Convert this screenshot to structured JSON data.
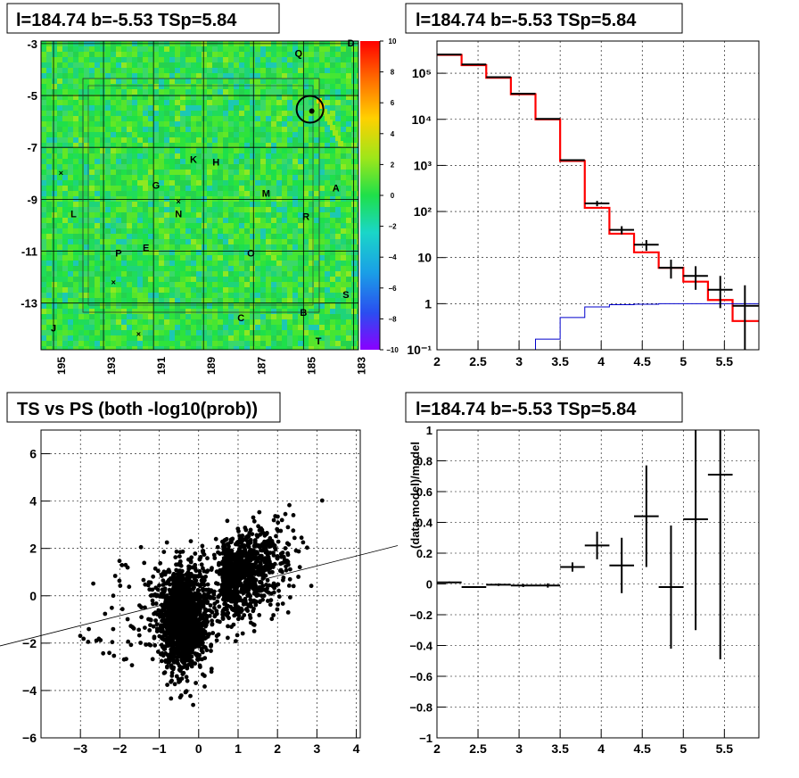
{
  "titles": {
    "p1": "l=184.74 b=-5.53 TSp=5.84",
    "p2": "l=184.74 b=-5.53 TSp=5.84",
    "p3": "TS vs PS (both -log10(prob))",
    "p4": "l=184.74 b=-5.53 TSp=5.84"
  },
  "colors": {
    "hist_red": "#ff0000",
    "model_blue": "#0000cc",
    "points": "#000000",
    "grid": "#000000",
    "map_green": "#33d633"
  },
  "chart_data": [
    {
      "type": "heatmap",
      "panel": "residual map",
      "x_ticks": [
        "195",
        "193",
        "191",
        "189",
        "187",
        "185",
        "183"
      ],
      "y_ticks": [
        "-3",
        "-5",
        "-7",
        "-9",
        "-11",
        "-13"
      ],
      "xlim": [
        195.5,
        182.8
      ],
      "ylim": [
        -14.8,
        -2.9
      ],
      "colorbar_ticks": [
        "10",
        "8",
        "6",
        "4",
        "2",
        "0",
        "−2",
        "−4",
        "−6",
        "−8",
        "−10"
      ],
      "colorbar_range": [
        -10,
        10
      ],
      "source_labels": [
        {
          "text": "Q",
          "l": 185.2,
          "b": -3.5
        },
        {
          "text": "D",
          "l": 183.1,
          "b": -3.1
        },
        {
          "text": "K",
          "l": 189.4,
          "b": -7.6
        },
        {
          "text": "H",
          "l": 188.5,
          "b": -7.7
        },
        {
          "text": "G",
          "l": 190.9,
          "b": -8.6
        },
        {
          "text": "M",
          "l": 186.5,
          "b": -8.9
        },
        {
          "text": "A",
          "l": 183.7,
          "b": -8.7
        },
        {
          "text": "L",
          "l": 194.2,
          "b": -9.7
        },
        {
          "text": "N",
          "l": 190.0,
          "b": -9.7
        },
        {
          "text": "R",
          "l": 184.9,
          "b": -9.8
        },
        {
          "text": "E",
          "l": 191.3,
          "b": -11.0
        },
        {
          "text": "P",
          "l": 192.4,
          "b": -11.2
        },
        {
          "text": "O",
          "l": 187.1,
          "b": -11.2
        },
        {
          "text": "S",
          "l": 183.3,
          "b": -12.8
        },
        {
          "text": "B",
          "l": 185.0,
          "b": -13.5
        },
        {
          "text": "C",
          "l": 187.5,
          "b": -13.7
        },
        {
          "text": "J",
          "l": 195.0,
          "b": -14.1
        },
        {
          "text": "T",
          "l": 184.4,
          "b": -14.6
        }
      ],
      "target_circle": {
        "l": 184.74,
        "b": -5.53
      }
    },
    {
      "type": "line",
      "panel": "counts spectrum",
      "x_ticks": [
        "2",
        "2.5",
        "3",
        "3.5",
        "4",
        "4.5",
        "5",
        "5.5"
      ],
      "y_ticks": [
        "10⁻¹",
        "1",
        "10",
        "10²",
        "10³",
        "10⁴",
        "10⁵"
      ],
      "xlim": [
        2.0,
        5.92
      ],
      "ylim": [
        0.1,
        500000
      ],
      "log_y": true,
      "bin_edges": [
        2.0,
        2.3,
        2.6,
        2.9,
        3.2,
        3.5,
        3.8,
        4.1,
        4.4,
        4.7,
        5.0,
        5.3,
        5.6,
        5.92
      ],
      "series": [
        {
          "kind": "model_total",
          "values": [
            250000,
            150000,
            80000,
            35000,
            10000,
            1250,
            120,
            33,
            13,
            6,
            3,
            1.2,
            0.42
          ]
        },
        {
          "kind": "data",
          "x": [
            2.15,
            2.45,
            2.75,
            3.05,
            3.35,
            3.65,
            3.95,
            4.25,
            4.55,
            4.85,
            5.15,
            5.45,
            5.75
          ],
          "values": [
            255000,
            155000,
            82000,
            36000,
            10200,
            1300,
            150,
            40,
            19,
            6,
            4,
            2,
            0.9
          ],
          "err_low": [
            0,
            0,
            0,
            0,
            0,
            0,
            20,
            8,
            5,
            2.5,
            2,
            1.2,
            0.8
          ],
          "err_high": [
            0,
            0,
            0,
            0,
            0,
            0,
            20,
            8,
            5,
            3,
            2.5,
            2,
            1.6
          ]
        },
        {
          "kind": "component",
          "values": [
            0,
            0,
            0,
            0.0,
            0.17,
            0.5,
            0.85,
            0.95,
            0.97,
            1.0,
            1.0,
            1.0,
            1.0
          ]
        }
      ]
    },
    {
      "type": "scatter",
      "panel": "TS vs PS",
      "x_ticks": [
        "−3",
        "−2",
        "−1",
        "0",
        "1",
        "2",
        "3",
        "4"
      ],
      "y_ticks": [
        "−6",
        "−4",
        "−2",
        "0",
        "2",
        "4",
        "6"
      ],
      "xlim": [
        -4.0,
        4.1
      ],
      "ylim": [
        -6.0,
        7.0
      ],
      "reference_line": {
        "slope": 0.42,
        "intercept": 0.0
      },
      "points_note": "dense cloud of black points"
    },
    {
      "type": "scatter",
      "panel": "residual ratio",
      "ylabel": "(data-model)/model",
      "x_ticks": [
        "2",
        "2.5",
        "3",
        "3.5",
        "4",
        "4.5",
        "5",
        "5.5"
      ],
      "y_ticks": [
        "−1",
        "−0.8",
        "−0.6",
        "−0.4",
        "−0.2",
        "0",
        "0.2",
        "0.4",
        "0.6",
        "0.8",
        "1"
      ],
      "xlim": [
        2.0,
        5.92
      ],
      "ylim": [
        -1.0,
        1.0
      ],
      "x": [
        2.15,
        2.45,
        2.75,
        3.05,
        3.35,
        3.65,
        3.95,
        4.25,
        4.55,
        4.85,
        5.15,
        5.45
      ],
      "xerr": [
        0.15,
        0.15,
        0.15,
        0.15,
        0.15,
        0.15,
        0.15,
        0.15,
        0.15,
        0.15,
        0.15,
        0.15
      ],
      "values": [
        0.01,
        -0.02,
        -0.005,
        -0.01,
        -0.01,
        0.11,
        0.25,
        0.12,
        0.44,
        -0.02,
        0.42,
        0.71
      ],
      "err": [
        0.006,
        0.006,
        0.008,
        0.01,
        0.014,
        0.03,
        0.09,
        0.18,
        0.33,
        0.4,
        0.72,
        1.2
      ]
    }
  ]
}
